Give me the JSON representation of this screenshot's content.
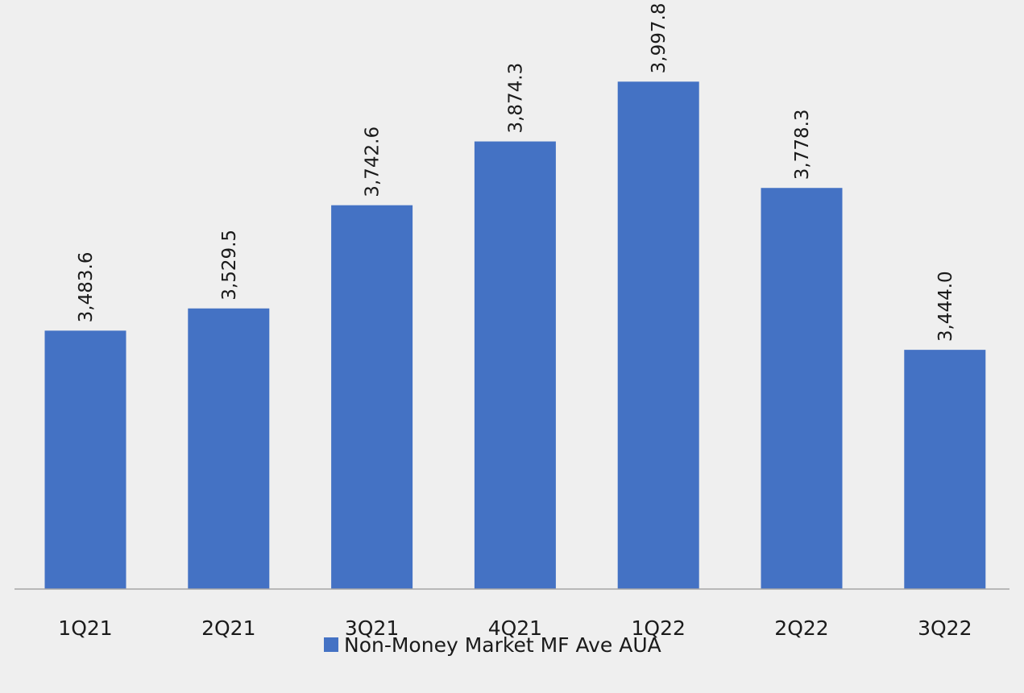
{
  "chart_data": {
    "type": "bar",
    "categories": [
      "1Q21",
      "2Q21",
      "3Q21",
      "4Q21",
      "1Q22",
      "2Q22",
      "3Q22"
    ],
    "series": [
      {
        "name": "Non-Money Market MF Ave AUA",
        "values": [
          3483.6,
          3529.5,
          3742.6,
          3874.3,
          3997.8,
          3778.3,
          3444.0
        ],
        "labels": [
          "3,483.6",
          "3,529.5",
          "3,742.6",
          "3,874.3",
          "3,997.8",
          "3,778.3",
          "3,444.0"
        ]
      }
    ],
    "ylim": [
      2950,
      4000
    ],
    "grid": false,
    "legend_position": "bottom",
    "bar_color": "#4472c4",
    "axis_color": "#a6a6a6",
    "background": "#efefef"
  }
}
